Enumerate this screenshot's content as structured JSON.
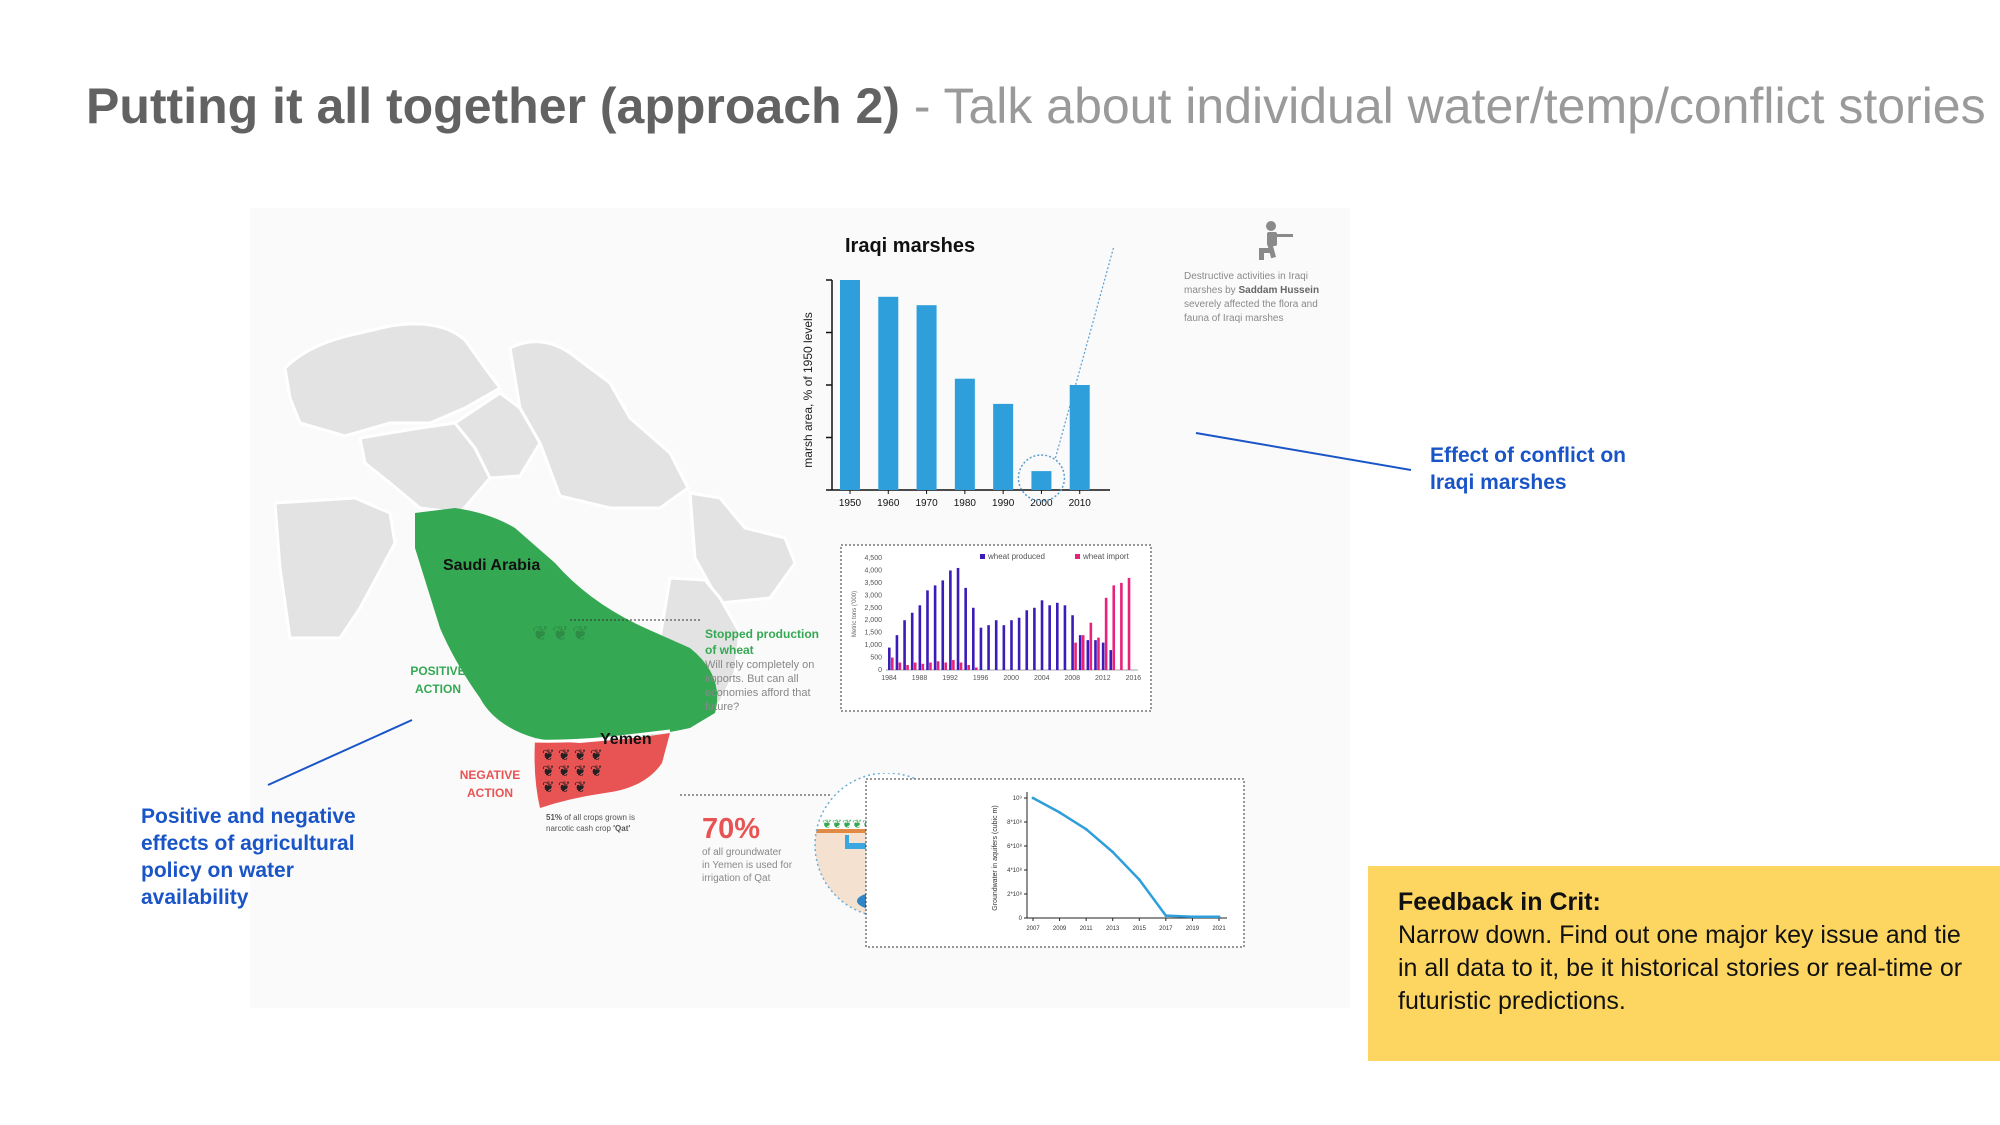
{
  "slide": {
    "title_bold": "Putting it all together (approach 2)",
    "title_light": " - Talk about individual water/temp/conflict stories"
  },
  "map": {
    "saudi_label": "Saudi Arabia",
    "yemen_label": "Yemen",
    "positive_action": [
      "POSITIVE",
      "ACTION"
    ],
    "negative_action": [
      "NEGATIVE",
      "ACTION"
    ],
    "colors": {
      "saudi": "#35a853",
      "yemen": "#e85454",
      "land": "#e3e3e3"
    }
  },
  "wheat_note": {
    "title": [
      "Stopped production",
      "of wheat"
    ],
    "body": [
      "Will rely completely on",
      "imports. But can all",
      "economies afford that",
      "future?"
    ]
  },
  "qat_note": {
    "bold": "51%",
    "lines": [
      "of all crops grown is",
      "narcotic cash crop ",
      "'Qat'"
    ]
  },
  "groundwater_stat": {
    "value": "70%",
    "lines": [
      "of all groundwater",
      "in Yemen is used for",
      "irrigation of Qat"
    ]
  },
  "conflict_note": {
    "lines": [
      "Destructive activities in Iraqi",
      "marshes by ",
      "Saddam Hussein",
      "severely affected the flora and",
      "fauna of Iraqi marshes"
    ]
  },
  "annotations": {
    "conflict": [
      "Effect of conflict on",
      "Iraqi marshes"
    ],
    "agri": [
      "Positive and negative",
      "effects of agricultural",
      "policy on water",
      "availability"
    ]
  },
  "feedback": {
    "heading": "Feedback in Crit:",
    "body": "Narrow down. Find out one major key issue and tie in all data to it, be it historical stories or real-time or futuristic predictions."
  },
  "chart_data": [
    {
      "type": "bar",
      "title": "Iraqi marshes",
      "ylabel": "marsh area, % of 1950 levels",
      "categories": [
        "1950",
        "1960",
        "1970",
        "1980",
        "1990",
        "2000",
        "2010"
      ],
      "values": [
        100,
        92,
        88,
        53,
        41,
        9,
        50
      ],
      "ylim": [
        0,
        100
      ],
      "highlight": "2000",
      "color": "#2e9fdb"
    },
    {
      "type": "bar",
      "ylabel": "Metric tons ('000)",
      "series": [
        {
          "name": "wheat produced",
          "color": "#3c1cb8",
          "x": [
            1984,
            1985,
            1986,
            1987,
            1988,
            1989,
            1990,
            1991,
            1992,
            1993,
            1994,
            1995,
            1996,
            1997,
            1998,
            1999,
            2000,
            2001,
            2002,
            2003,
            2004,
            2005,
            2006,
            2007,
            2008,
            2009,
            2010,
            2011,
            2012,
            2013,
            2014,
            2015,
            2016
          ],
          "values": [
            900,
            1400,
            2000,
            2300,
            2600,
            3200,
            3400,
            3600,
            4000,
            4100,
            3300,
            2500,
            1700,
            1800,
            2000,
            1800,
            2000,
            2100,
            2400,
            2500,
            2800,
            2600,
            2700,
            2600,
            2200,
            1400,
            1200,
            1200,
            1100,
            800,
            0,
            0,
            0
          ]
        },
        {
          "name": "wheat import",
          "color": "#e6227d",
          "x": [
            1984,
            1985,
            1986,
            1987,
            1988,
            1989,
            1990,
            1991,
            1992,
            1993,
            1994,
            1995,
            1996,
            1997,
            1998,
            1999,
            2000,
            2001,
            2002,
            2003,
            2004,
            2005,
            2006,
            2007,
            2008,
            2009,
            2010,
            2011,
            2012,
            2013,
            2014,
            2015,
            2016
          ],
          "values": [
            500,
            300,
            200,
            300,
            250,
            300,
            350,
            300,
            400,
            300,
            200,
            100,
            0,
            0,
            0,
            0,
            0,
            0,
            0,
            0,
            0,
            0,
            0,
            0,
            1100,
            1400,
            1900,
            1300,
            2900,
            3400,
            3500,
            3700,
            0
          ]
        }
      ],
      "yticks": [
        "0",
        "500",
        "1,000",
        "1,500",
        "2,000",
        "2,500",
        "3,000",
        "3,500",
        "4,000",
        "4,500"
      ],
      "xticks": [
        "1984",
        "1988",
        "1992",
        "1996",
        "2000",
        "2004",
        "2008",
        "2012",
        "2016"
      ],
      "ylim": [
        0,
        4500
      ]
    },
    {
      "type": "line",
      "ylabel": "Groundwater in aquifers (cubic m)",
      "x": [
        2007,
        2009,
        2011,
        2013,
        2015,
        2017,
        2019,
        2021
      ],
      "values": [
        1.0,
        0.88,
        0.74,
        0.55,
        0.32,
        0.02,
        0.01,
        0.01
      ],
      "yticks": [
        "0",
        "2*10⁸",
        "4*10⁸",
        "6*10⁸",
        "8*10⁸",
        "10⁹"
      ],
      "xticks": [
        "2007",
        "2009",
        "2011",
        "2013",
        "2015",
        "2017",
        "2019",
        "2021"
      ],
      "ylim": [
        0,
        1.0
      ],
      "color": "#2e9fdb"
    }
  ]
}
